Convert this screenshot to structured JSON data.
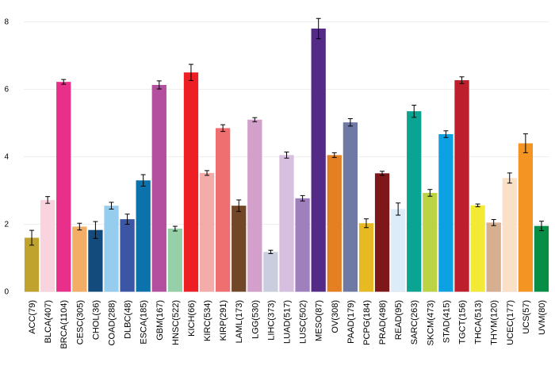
{
  "chart_data": {
    "type": "bar",
    "title": "",
    "xlabel": "",
    "ylabel": "",
    "ylim": [
      0,
      8.2
    ],
    "yticks": [
      0,
      2,
      4,
      6,
      8
    ],
    "grid": true,
    "error_bars": true,
    "categories": [
      "ACC(79)",
      "BLCA(407)",
      "BRCA(1104)",
      "CESC(305)",
      "CHOL(36)",
      "COAD(288)",
      "DLBC(48)",
      "ESCA(185)",
      "GBM(167)",
      "HNSC(522)",
      "KICH(66)",
      "KIRC(534)",
      "KIRP(291)",
      "LAML(173)",
      "LGG(530)",
      "LIHC(373)",
      "LUAD(517)",
      "LUSC(502)",
      "MESO(87)",
      "OV(308)",
      "PAAD(179)",
      "PCPG(184)",
      "PRAD(498)",
      "READ(95)",
      "SARC(263)",
      "SKCM(473)",
      "STAD(415)",
      "TGCT(156)",
      "THCA(513)",
      "THYM(120)",
      "UCEC(177)",
      "UCS(57)",
      "UVM(80)"
    ],
    "values": [
      1.6,
      2.72,
      6.22,
      1.93,
      1.83,
      2.55,
      2.15,
      3.3,
      6.13,
      1.87,
      6.5,
      3.52,
      4.85,
      2.55,
      5.1,
      1.18,
      4.05,
      2.77,
      7.8,
      4.05,
      5.02,
      2.03,
      3.51,
      2.45,
      5.35,
      2.93,
      4.67,
      6.27,
      2.56,
      2.05,
      3.37,
      4.4,
      1.95
    ],
    "errors": [
      0.22,
      0.1,
      0.07,
      0.1,
      0.25,
      0.1,
      0.15,
      0.17,
      0.12,
      0.07,
      0.24,
      0.07,
      0.1,
      0.17,
      0.06,
      0.05,
      0.09,
      0.08,
      0.3,
      0.07,
      0.11,
      0.13,
      0.06,
      0.18,
      0.18,
      0.1,
      0.1,
      0.1,
      0.04,
      0.09,
      0.15,
      0.28,
      0.14
    ],
    "colors": [
      "#bfa32e",
      "#f9d4de",
      "#e8308b",
      "#f3ad64",
      "#134c7c",
      "#96cdee",
      "#3b56a4",
      "#0b72ac",
      "#b34f9e",
      "#96d0a8",
      "#ee1f24",
      "#f4acab",
      "#ef6f70",
      "#714727",
      "#d39fcb",
      "#cacdde",
      "#d7c0df",
      "#a07fbd",
      "#532b87",
      "#e47f22",
      "#6f7aa4",
      "#e7ba24",
      "#7e1719",
      "#dcecf8",
      "#0ba391",
      "#bcd443",
      "#0ba1e2",
      "#bd1f2c",
      "#f2ea34",
      "#d6ae90",
      "#fbe0c8",
      "#f49523",
      "#068e47"
    ]
  }
}
